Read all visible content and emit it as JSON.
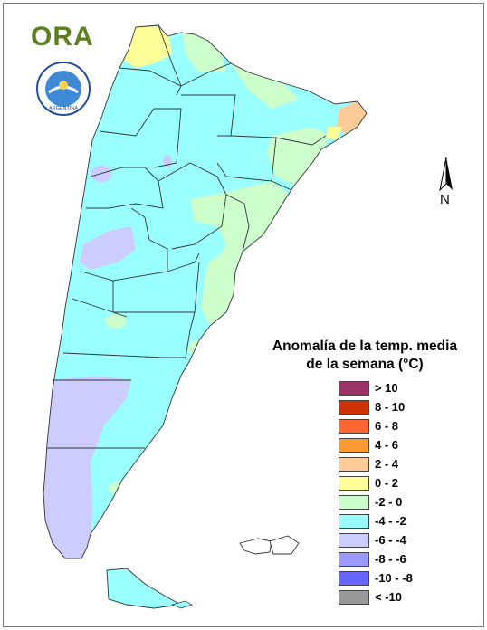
{
  "logo": {
    "text": "ORA",
    "seal_text": "ARGENTINA"
  },
  "compass": {
    "label": "N"
  },
  "legend": {
    "title_line1": "Anomalía de la temp. media",
    "title_line2": "de la semana (°C)",
    "items": [
      {
        "label": "> 10",
        "color": "#993366"
      },
      {
        "label": "8 - 10",
        "color": "#cc3300"
      },
      {
        "label": "6 - 8",
        "color": "#ff6633"
      },
      {
        "label": "4 - 6",
        "color": "#ff9933"
      },
      {
        "label": "2 - 4",
        "color": "#ffcc99"
      },
      {
        "label": "0 - 2",
        "color": "#ffff99"
      },
      {
        "label": "-2 - 0",
        "color": "#ccffcc"
      },
      {
        "label": "-4 - -2",
        "color": "#99ffff"
      },
      {
        "label": "-6 - -4",
        "color": "#ccccff"
      },
      {
        "label": "-8 - -6",
        "color": "#9999ff"
      },
      {
        "label": "-10 - -8",
        "color": "#6666ff"
      },
      {
        "label": "< -10",
        "color": "#999999"
      }
    ]
  },
  "map_colors": {
    "cyan": "#99ffff",
    "green": "#ccffcc",
    "yellow": "#ffff99",
    "orange": "#ffcc99",
    "lavender": "#ccccff",
    "border": "#333333"
  }
}
